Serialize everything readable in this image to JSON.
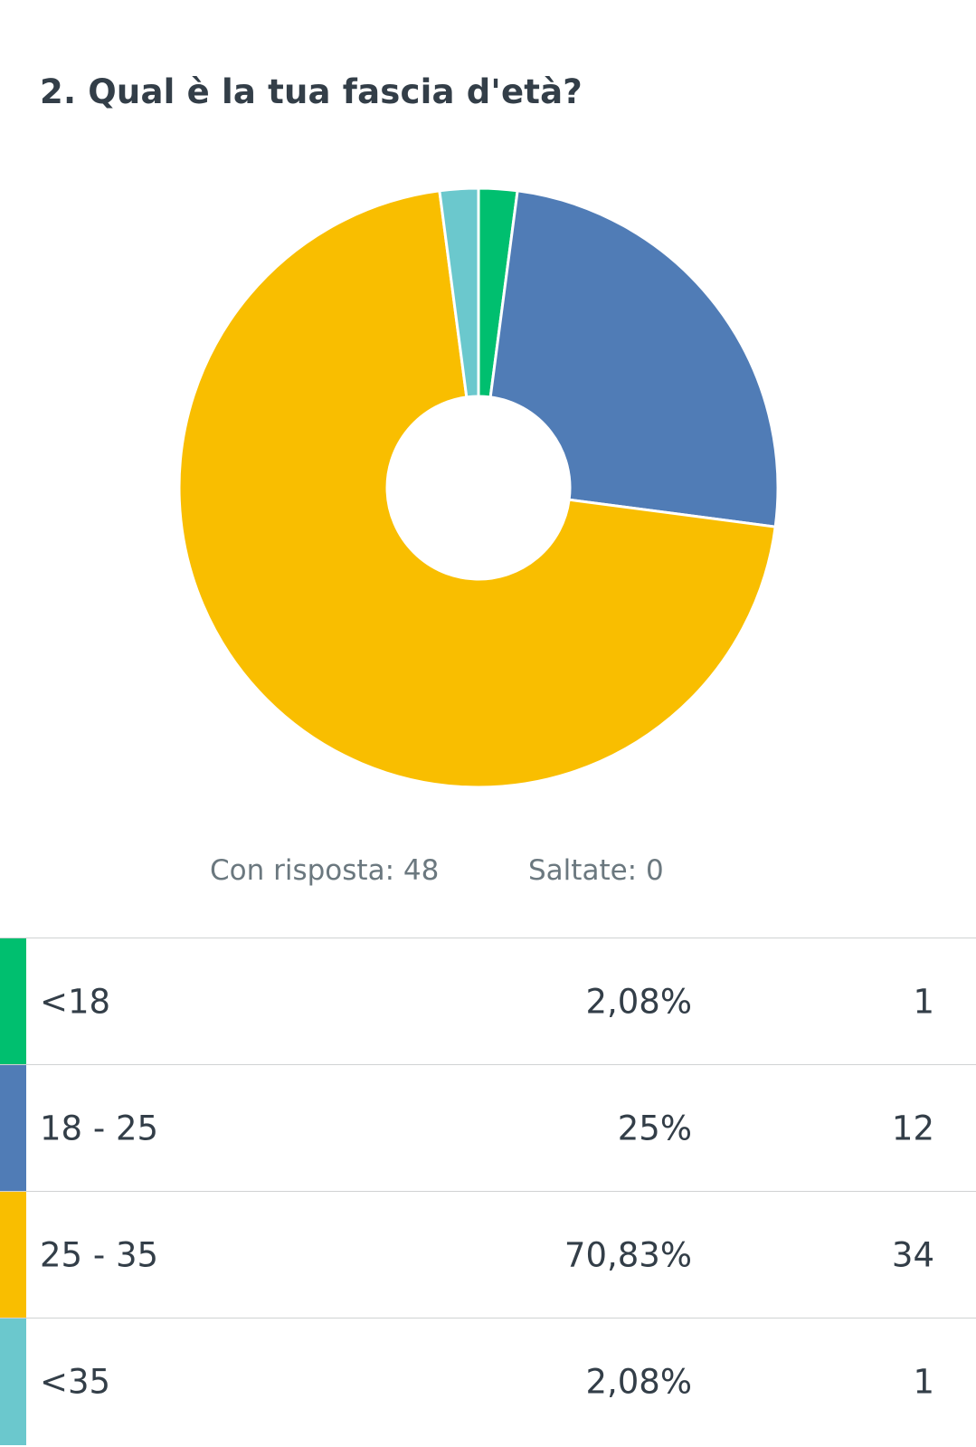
{
  "question": {
    "title": "2. Qual è la tua fascia d'età?"
  },
  "summary": {
    "answered_label": "Con risposta: 48",
    "skipped_label": "Saltate: 0"
  },
  "colors": {
    "lt18": "#00bf6f",
    "r18_25": "#507cb6",
    "r25_35": "#f9be00",
    "lt35": "#6bc8cd"
  },
  "chart_data": {
    "type": "pie",
    "donut": true,
    "categories": [
      "<18",
      "18 - 25",
      "25 - 35",
      "<35"
    ],
    "values": [
      2.08,
      25,
      70.83,
      2.08
    ],
    "colors": [
      "#00bf6f",
      "#507cb6",
      "#f9be00",
      "#6bc8cd"
    ],
    "title": "",
    "legend": "table-below"
  },
  "table": {
    "rows": [
      {
        "label": "<18",
        "percent": "2,08%",
        "count": "1",
        "color": "#00bf6f"
      },
      {
        "label": "18 - 25",
        "percent": "25%",
        "count": "12",
        "color": "#507cb6"
      },
      {
        "label": "25 - 35",
        "percent": "70,83%",
        "count": "34",
        "color": "#f9be00"
      },
      {
        "label": "<35",
        "percent": "2,08%",
        "count": "1",
        "color": "#6bc8cd"
      }
    ]
  }
}
